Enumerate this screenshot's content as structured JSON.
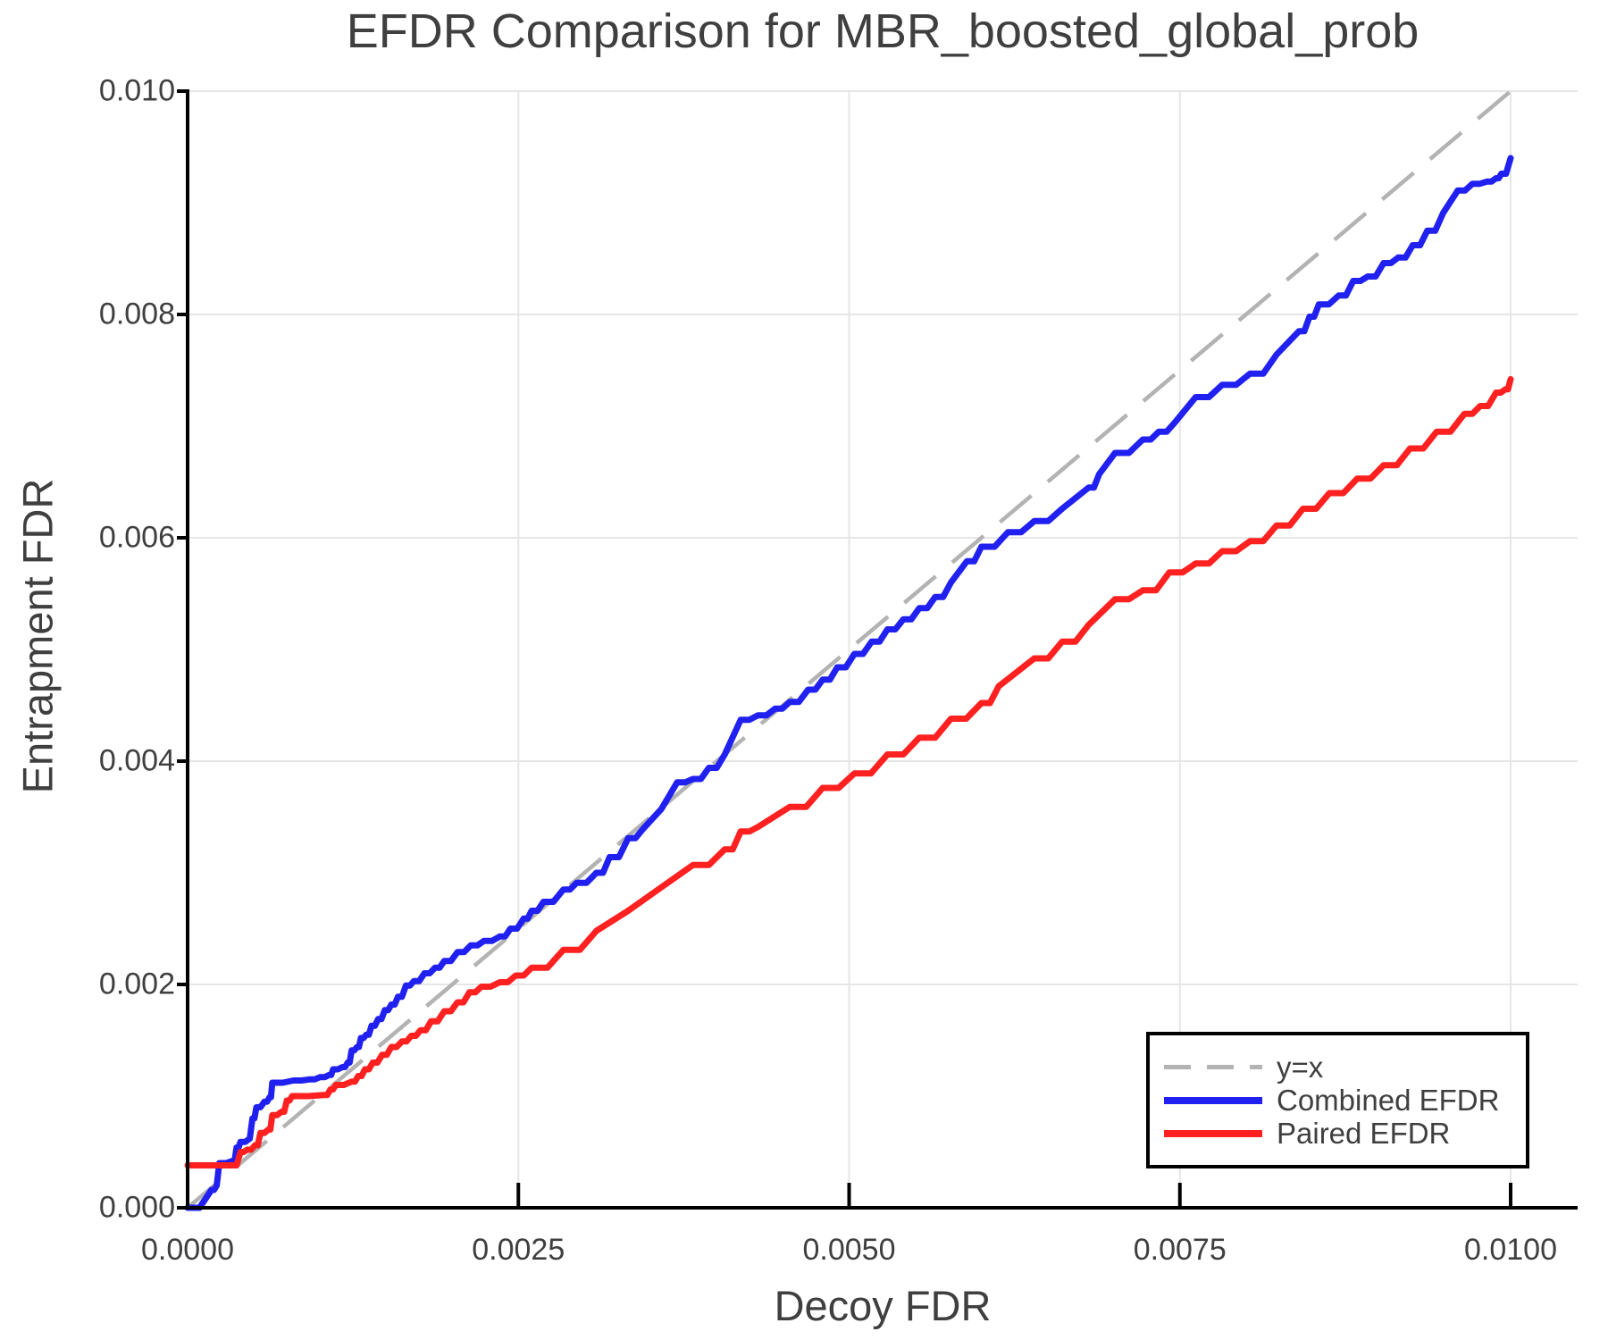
{
  "chart_data": {
    "type": "line",
    "title": "EFDR Comparison for MBR_boosted_global_prob",
    "xlabel": "Decoy FDR",
    "ylabel": "Entrapment FDR",
    "xlim": [
      0.0,
      0.0105
    ],
    "ylim": [
      0.0,
      0.01
    ],
    "grid": true,
    "legend_position": "lower right",
    "style_colors": {
      "grid_color": "#e6e6e6",
      "axis_color": "#000000",
      "text_color": "#3f3f3f",
      "background": "#ffffff"
    },
    "x_ticks": [
      {
        "v": 0.0,
        "label": "0.0000"
      },
      {
        "v": 0.0025,
        "label": "0.0025"
      },
      {
        "v": 0.005,
        "label": "0.0050"
      },
      {
        "v": 0.0075,
        "label": "0.0075"
      },
      {
        "v": 0.01,
        "label": "0.0100"
      }
    ],
    "y_ticks": [
      {
        "v": 0.0,
        "label": "0.000"
      },
      {
        "v": 0.002,
        "label": "0.002"
      },
      {
        "v": 0.004,
        "label": "0.004"
      },
      {
        "v": 0.006,
        "label": "0.006"
      },
      {
        "v": 0.008,
        "label": "0.008"
      },
      {
        "v": 0.01,
        "label": "0.010"
      }
    ],
    "reference_line": {
      "label": "y=x",
      "from": [
        0.0,
        0.0
      ],
      "to": [
        0.01,
        0.01
      ],
      "color": "#b3b3b3",
      "dashed": true
    },
    "legend_entries": [
      {
        "label": "y=x",
        "color": "#b3b3b3",
        "style": "dashed"
      },
      {
        "label": "Combined EFDR",
        "color": "#2020f0",
        "style": "solid"
      },
      {
        "label": "Paired EFDR",
        "color": "#ff2020",
        "style": "solid"
      }
    ],
    "series": [
      {
        "name": "Combined EFDR",
        "color": "#2020f0",
        "points": [
          [
            0.0,
            0.0
          ],
          [
            0.00018,
            0.00016
          ],
          [
            0.00022,
            0.0002
          ],
          [
            0.00024,
            0.0004
          ],
          [
            0.00034,
            0.00042
          ],
          [
            0.00037,
            0.00054
          ],
          [
            0.0004,
            0.00059
          ],
          [
            0.00047,
            0.00062
          ],
          [
            0.00049,
            0.0008
          ],
          [
            0.00052,
            0.0009
          ],
          [
            0.00058,
            0.00095
          ],
          [
            0.00062,
            0.00099
          ],
          [
            0.00064,
            0.00112
          ],
          [
            0.0008,
            0.00114
          ],
          [
            0.00092,
            0.00115
          ],
          [
            0.001,
            0.00117
          ],
          [
            0.00107,
            0.00119
          ],
          [
            0.0011,
            0.00124
          ],
          [
            0.00117,
            0.00126
          ],
          [
            0.00121,
            0.0013
          ],
          [
            0.00124,
            0.00141
          ],
          [
            0.00128,
            0.00144
          ],
          [
            0.00131,
            0.00152
          ],
          [
            0.00135,
            0.00155
          ],
          [
            0.00139,
            0.00163
          ],
          [
            0.00144,
            0.00169
          ],
          [
            0.00149,
            0.00177
          ],
          [
            0.00154,
            0.00182
          ],
          [
            0.00159,
            0.00189
          ],
          [
            0.00165,
            0.00199
          ],
          [
            0.00171,
            0.00203
          ],
          [
            0.00179,
            0.0021
          ],
          [
            0.00187,
            0.00215
          ],
          [
            0.00194,
            0.00221
          ],
          [
            0.00204,
            0.00229
          ],
          [
            0.00214,
            0.00235
          ],
          [
            0.00224,
            0.00239
          ],
          [
            0.00236,
            0.00243
          ],
          [
            0.00244,
            0.0025
          ],
          [
            0.00254,
            0.00259
          ],
          [
            0.0026,
            0.00266
          ],
          [
            0.00269,
            0.00274
          ],
          [
            0.00284,
            0.00285
          ],
          [
            0.00294,
            0.00291
          ],
          [
            0.00309,
            0.003
          ],
          [
            0.00319,
            0.00314
          ],
          [
            0.00333,
            0.00331
          ],
          [
            0.00344,
            0.00339
          ],
          [
            0.00358,
            0.00357
          ],
          [
            0.0037,
            0.00381
          ],
          [
            0.00382,
            0.00384
          ],
          [
            0.00394,
            0.00394
          ],
          [
            0.00406,
            0.00406
          ],
          [
            0.00418,
            0.00437
          ],
          [
            0.00431,
            0.00441
          ],
          [
            0.00444,
            0.00447
          ],
          [
            0.00455,
            0.00453
          ],
          [
            0.00469,
            0.00464
          ],
          [
            0.0048,
            0.00473
          ],
          [
            0.00491,
            0.00484
          ],
          [
            0.00504,
            0.00496
          ],
          [
            0.00517,
            0.00507
          ],
          [
            0.00529,
            0.00518
          ],
          [
            0.00541,
            0.00527
          ],
          [
            0.00553,
            0.00537
          ],
          [
            0.00565,
            0.00547
          ],
          [
            0.00577,
            0.0056
          ],
          [
            0.00589,
            0.00579
          ],
          [
            0.006,
            0.00592
          ],
          [
            0.0062,
            0.00605
          ],
          [
            0.0064,
            0.00615
          ],
          [
            0.00661,
            0.00626
          ],
          [
            0.00681,
            0.00645
          ],
          [
            0.00689,
            0.00657
          ],
          [
            0.00701,
            0.00676
          ],
          [
            0.00722,
            0.00688
          ],
          [
            0.00734,
            0.00695
          ],
          [
            0.00746,
            0.00703
          ],
          [
            0.00762,
            0.00726
          ],
          [
            0.00782,
            0.00737
          ],
          [
            0.00803,
            0.00747
          ],
          [
            0.00823,
            0.00764
          ],
          [
            0.0084,
            0.00785
          ],
          [
            0.00848,
            0.00798
          ],
          [
            0.00855,
            0.00809
          ],
          [
            0.0087,
            0.00817
          ],
          [
            0.00881,
            0.0083
          ],
          [
            0.00892,
            0.00834
          ],
          [
            0.00904,
            0.00846
          ],
          [
            0.00915,
            0.00851
          ],
          [
            0.00926,
            0.00862
          ],
          [
            0.00937,
            0.00875
          ],
          [
            0.00949,
            0.00891
          ],
          [
            0.0096,
            0.00911
          ],
          [
            0.00971,
            0.00917
          ],
          [
            0.00982,
            0.00919
          ],
          [
            0.00989,
            0.00922
          ],
          [
            0.00993,
            0.00926
          ],
          [
            0.01,
            0.0094
          ]
        ]
      },
      {
        "name": "Paired EFDR",
        "color": "#ff2020",
        "points": [
          [
            0.0,
            0.00038
          ],
          [
            0.00034,
            0.00038
          ],
          [
            0.0004,
            0.0005
          ],
          [
            0.00045,
            0.00052
          ],
          [
            0.00051,
            0.00056
          ],
          [
            0.00055,
            0.00067
          ],
          [
            0.00061,
            0.0007
          ],
          [
            0.00064,
            0.00083
          ],
          [
            0.00071,
            0.00086
          ],
          [
            0.00075,
            0.00096
          ],
          [
            0.00079,
            0.001
          ],
          [
            0.00103,
            0.00101
          ],
          [
            0.00108,
            0.00106
          ],
          [
            0.00112,
            0.0011
          ],
          [
            0.00124,
            0.00113
          ],
          [
            0.00129,
            0.00118
          ],
          [
            0.00134,
            0.00124
          ],
          [
            0.0014,
            0.0013
          ],
          [
            0.00147,
            0.00137
          ],
          [
            0.00154,
            0.00144
          ],
          [
            0.00162,
            0.00149
          ],
          [
            0.00169,
            0.00154
          ],
          [
            0.00176,
            0.00159
          ],
          [
            0.00184,
            0.00167
          ],
          [
            0.00194,
            0.00176
          ],
          [
            0.00204,
            0.00184
          ],
          [
            0.00213,
            0.00193
          ],
          [
            0.00222,
            0.00198
          ],
          [
            0.00236,
            0.00202
          ],
          [
            0.00248,
            0.00208
          ],
          [
            0.0026,
            0.00215
          ],
          [
            0.00284,
            0.00231
          ],
          [
            0.00309,
            0.00248
          ],
          [
            0.00333,
            0.00266
          ],
          [
            0.00358,
            0.00287
          ],
          [
            0.00382,
            0.00307
          ],
          [
            0.00406,
            0.00321
          ],
          [
            0.00418,
            0.00337
          ],
          [
            0.00431,
            0.00341
          ],
          [
            0.00455,
            0.00359
          ],
          [
            0.0048,
            0.00376
          ],
          [
            0.00504,
            0.00389
          ],
          [
            0.00529,
            0.00406
          ],
          [
            0.00553,
            0.00421
          ],
          [
            0.00577,
            0.00438
          ],
          [
            0.006,
            0.00452
          ],
          [
            0.00613,
            0.00467
          ],
          [
            0.0064,
            0.00492
          ],
          [
            0.00661,
            0.00507
          ],
          [
            0.00681,
            0.00522
          ],
          [
            0.00701,
            0.00545
          ],
          [
            0.00722,
            0.00553
          ],
          [
            0.00742,
            0.00569
          ],
          [
            0.00762,
            0.00577
          ],
          [
            0.00782,
            0.00588
          ],
          [
            0.00803,
            0.00597
          ],
          [
            0.00823,
            0.00611
          ],
          [
            0.00843,
            0.00626
          ],
          [
            0.00863,
            0.0064
          ],
          [
            0.00884,
            0.00653
          ],
          [
            0.00904,
            0.00665
          ],
          [
            0.00924,
            0.0068
          ],
          [
            0.00944,
            0.00695
          ],
          [
            0.00965,
            0.00711
          ],
          [
            0.00977,
            0.00718
          ],
          [
            0.00989,
            0.0073
          ],
          [
            0.00996,
            0.00733
          ],
          [
            0.01,
            0.00742
          ]
        ]
      }
    ]
  }
}
